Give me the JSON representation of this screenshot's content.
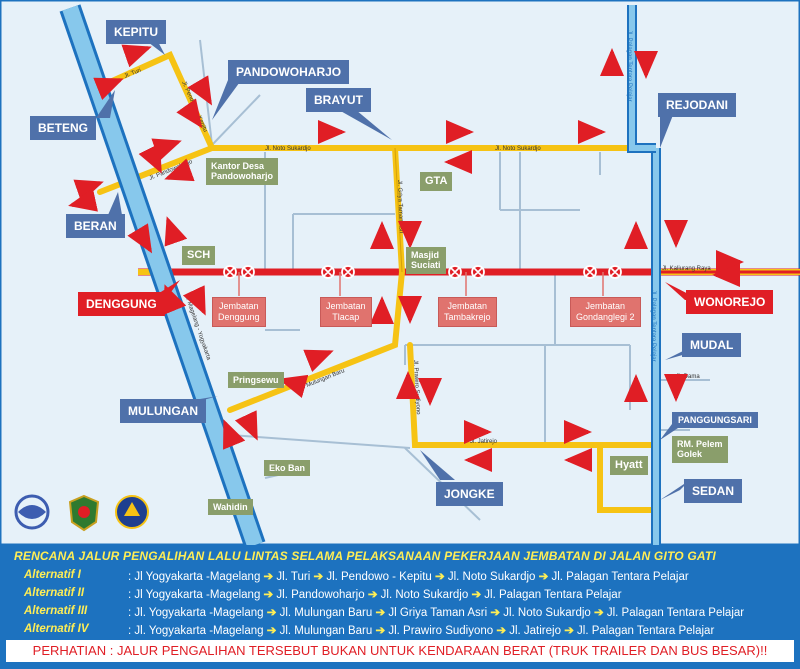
{
  "places": {
    "kepitu": "KEPITU",
    "pandowoharjo": "PANDOWOHARJO",
    "brayut": "BRAYUT",
    "rejodani": "REJODANI",
    "beteng": "BETENG",
    "beran": "BERAN",
    "denggung": "DENGGUNG",
    "wonorejo": "WONOREJO",
    "mudal": "MUDAL",
    "mulungan": "MULUNGAN",
    "jongke": "JONGKE",
    "sedan": "SEDAN",
    "panggungsari": "PANGGUNGSARI"
  },
  "landmarks": {
    "kantor_desa": "Kantor Desa\nPandowoharjo",
    "gta": "GTA",
    "sch": "SCH",
    "masjid": "Masjid\nSuciati",
    "pringsewu": "Pringsewu",
    "eko_ban": "Eko Ban",
    "wahidin": "Wahidin",
    "hyatt": "Hyatt",
    "rm_pelem": "RM. Pelem\nGolek"
  },
  "bridges": {
    "denggung": "Jembatan\nDenggung",
    "tlacap": "Jembatan\nTlacap",
    "tambakrejo": "Jembatan\nTambakrejo",
    "gondanglegi": "Jembatan\nGondanglegi 2"
  },
  "legend": {
    "title": "RENCANA JALUR PENGALIHAN LALU LINTAS SELAMA PELAKSANAAN PEKERJAAN JEMBATAN DI JALAN GITO GATI",
    "alternatives": [
      {
        "name": "Alternatif I",
        "route": [
          "Jl Yogyakarta -Magelang",
          "Jl. Turi",
          "Jl. Pendowo - Kepitu",
          "Jl. Noto Sukardjo",
          "Jl. Palagan Tentara Pelajar"
        ],
        "prefix": ": Jl Yogyakarta -Magelang"
      },
      {
        "name": "Alternatif II",
        "route": [
          "Jl Yogyakarta -Magelang",
          "Jl. Pandowoharjo",
          "Jl. Noto Sukardjo",
          "Jl. Palagan Tentara  Pelajar"
        ]
      },
      {
        "name": "Alternatif III",
        "route": [
          "Jl. Yogyakarta -Magelang",
          "Jl. Mulungan Baru",
          "Jl Griya Taman Asri",
          "Jl. Noto Sukardjo",
          "Jl. Palagan Tentara Pelajar"
        ]
      },
      {
        "name": "Alternatif IV",
        "route": [
          "Jl. Yogyakarta -Magelang",
          "Jl. Mulungan Baru",
          "Jl. Prawiro Sudiyono",
          "Jl. Jatirejo",
          "Jl. Palagan Tentara Pelajar"
        ]
      }
    ],
    "warning": "PERHATIAN :  JALUR PENGALIHAN TERSEBUT BUKAN UNTUK KENDARAAN BERAT (TRUK TRAILER DAN BUS BESAR)!!"
  },
  "colors": {
    "accent_red": "#e01e25",
    "callout_blue": "#4f71aa",
    "road_yellow": "#f6c314",
    "legend_bg": "#1d72bf"
  }
}
